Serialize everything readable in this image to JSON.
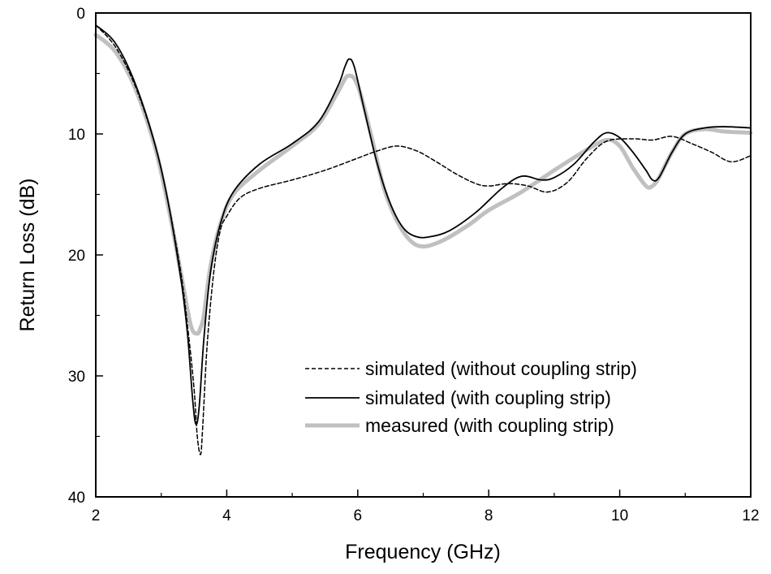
{
  "chart_data": {
    "type": "line",
    "xlabel": "Frequency (GHz)",
    "ylabel": "Return Loss (dB)",
    "xlim": [
      2,
      12
    ],
    "ylim": [
      0,
      40
    ],
    "y_inverted": true,
    "grid": false,
    "legend_position": "lower-right",
    "x_ticks": [
      2,
      4,
      6,
      8,
      10,
      12
    ],
    "y_ticks": [
      0,
      10,
      20,
      30,
      40
    ],
    "series": [
      {
        "name": "simulated (without coupling strip)",
        "style": "dashed",
        "color": "#000000",
        "x": [
          2,
          2.3,
          2.6,
          2.9,
          3.1,
          3.3,
          3.4,
          3.5,
          3.55,
          3.6,
          3.63,
          3.7,
          3.8,
          3.9,
          4.0,
          4.2,
          4.5,
          5.0,
          5.5,
          6.0,
          6.3,
          6.6,
          6.9,
          7.2,
          7.5,
          7.8,
          8.0,
          8.3,
          8.6,
          8.9,
          9.2,
          9.5,
          9.8,
          10.2,
          10.5,
          10.8,
          11.1,
          11.4,
          11.7,
          12.0
        ],
        "y": [
          1.0,
          2.8,
          6.0,
          10.8,
          15.5,
          21.5,
          25.8,
          31.0,
          35.0,
          36.5,
          34.5,
          27.5,
          21.5,
          18.0,
          16.8,
          15.3,
          14.5,
          13.8,
          13.0,
          12.0,
          11.4,
          11.0,
          11.4,
          12.3,
          13.3,
          14.1,
          14.3,
          14.1,
          14.3,
          14.8,
          14.0,
          12.0,
          10.6,
          10.4,
          10.5,
          10.2,
          10.8,
          11.5,
          12.3,
          11.8
        ]
      },
      {
        "name": "simulated (with coupling strip)",
        "style": "solid",
        "color": "#000000",
        "x": [
          2,
          2.3,
          2.6,
          2.9,
          3.1,
          3.3,
          3.4,
          3.48,
          3.53,
          3.58,
          3.65,
          3.75,
          3.9,
          4.1,
          4.5,
          5.0,
          5.4,
          5.7,
          5.8,
          5.87,
          5.95,
          6.1,
          6.3,
          6.5,
          6.7,
          6.9,
          7.1,
          7.4,
          7.8,
          8.2,
          8.5,
          8.8,
          9.0,
          9.3,
          9.6,
          9.8,
          10.0,
          10.2,
          10.4,
          10.5,
          10.6,
          10.8,
          11.0,
          11.3,
          11.6,
          12.0
        ],
        "y": [
          1.0,
          2.5,
          5.8,
          10.8,
          15.5,
          22.0,
          26.5,
          32.0,
          34.0,
          32.5,
          27.0,
          21.5,
          17.5,
          14.8,
          12.5,
          10.8,
          9.0,
          6.0,
          4.5,
          3.8,
          4.5,
          8.0,
          12.5,
          15.8,
          17.8,
          18.5,
          18.5,
          18.0,
          16.5,
          14.5,
          13.5,
          13.8,
          13.6,
          12.5,
          10.7,
          9.9,
          10.3,
          11.5,
          13.0,
          13.8,
          13.6,
          11.5,
          10.0,
          9.5,
          9.4,
          9.5
        ]
      },
      {
        "name": "measured (with coupling strip)",
        "style": "solid-thick",
        "color": "#c0c0c0",
        "x": [
          2,
          2.3,
          2.6,
          2.9,
          3.1,
          3.3,
          3.45,
          3.55,
          3.6,
          3.65,
          3.75,
          3.9,
          4.1,
          4.5,
          5.0,
          5.4,
          5.7,
          5.85,
          6.0,
          6.2,
          6.4,
          6.6,
          6.8,
          7.0,
          7.3,
          7.7,
          8.0,
          8.5,
          9.0,
          9.5,
          9.8,
          10.0,
          10.2,
          10.4,
          10.5,
          10.6,
          10.8,
          11.0,
          11.3,
          11.6,
          12.0
        ],
        "y": [
          1.8,
          3.2,
          6.2,
          11.0,
          15.8,
          21.5,
          25.8,
          26.5,
          26.0,
          25.0,
          21.0,
          17.5,
          15.0,
          13.0,
          11.0,
          9.2,
          6.5,
          5.2,
          6.0,
          10.0,
          14.5,
          17.2,
          18.8,
          19.3,
          18.8,
          17.5,
          16.3,
          14.8,
          13.0,
          11.3,
          10.5,
          11.0,
          12.8,
          14.3,
          14.3,
          13.6,
          11.5,
          10.0,
          9.6,
          9.8,
          9.9
        ]
      }
    ]
  }
}
